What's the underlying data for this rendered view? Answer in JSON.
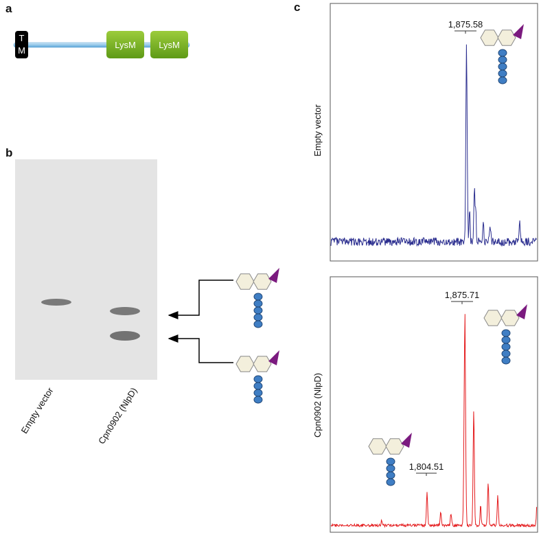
{
  "panels": {
    "a": {
      "label": "a",
      "tm": [
        "T",
        "M"
      ],
      "domains": [
        "LysM",
        "LysM"
      ]
    },
    "b": {
      "label": "b",
      "lanes": [
        "Empty vector",
        "Cpn0902 (NlpD)"
      ]
    },
    "c": {
      "label": "c",
      "spectra": [
        {
          "ylabel": "Empty vector",
          "peaks": [
            "1,875.58"
          ]
        },
        {
          "ylabel": "Cpn0902 (NlpD)",
          "peaks": [
            "1,875.71",
            "1,804.51"
          ]
        }
      ]
    }
  }
}
